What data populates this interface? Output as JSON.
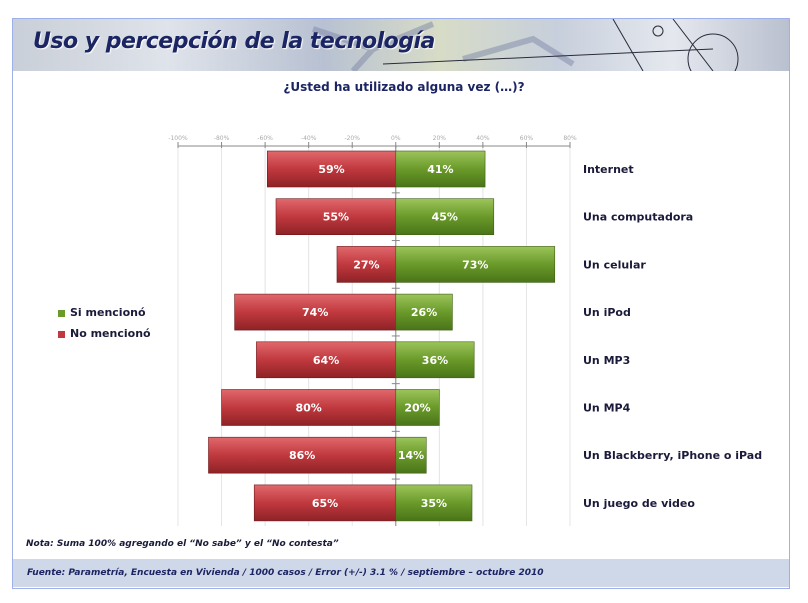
{
  "header": {
    "title": "Uso y percepción de la tecnología"
  },
  "chart_data": {
    "type": "bar",
    "orientation": "horizontal-diverging",
    "title": "¿Usted ha utilizado alguna vez (…)?",
    "categories": [
      "Internet",
      "Una computadora",
      "Un celular",
      "Un iPod",
      "Un MP3",
      "Un MP4",
      "Un Blackberry, iPhone o iPad",
      "Un juego de video"
    ],
    "series": [
      {
        "name": "Si mencionó",
        "color": "#6a9a2a",
        "values": [
          41,
          45,
          73,
          26,
          36,
          20,
          14,
          35
        ],
        "labels": [
          "41%",
          "45%",
          "73%",
          "26%",
          "36%",
          "20%",
          "14%",
          "35%"
        ]
      },
      {
        "name": "No mencionó",
        "color": "#c0393e",
        "values": [
          -59,
          -55,
          -27,
          -74,
          -64,
          -80,
          -86,
          -65
        ],
        "labels": [
          "59%",
          "55%",
          "27%",
          "74%",
          "64%",
          "80%",
          "86%",
          "65%"
        ]
      }
    ],
    "xlim": [
      -100,
      80
    ],
    "xticks": [
      -100,
      -80,
      -60,
      -40,
      -20,
      0,
      20,
      40,
      60,
      80
    ],
    "xtick_labels": [
      "-100%",
      "-80%",
      "-60%",
      "-40%",
      "-20%",
      "0%",
      "20%",
      "40%",
      "60%",
      "80%"
    ],
    "legend_position": "left",
    "grid": true
  },
  "nota": "Nota: Suma 100% agregando el “No sabe” y el “No contesta”",
  "footer": "Fuente: Parametría, Encuesta en Vivienda / 1000 casos / Error (+/-) 3.1 % / septiembre – octubre 2010"
}
